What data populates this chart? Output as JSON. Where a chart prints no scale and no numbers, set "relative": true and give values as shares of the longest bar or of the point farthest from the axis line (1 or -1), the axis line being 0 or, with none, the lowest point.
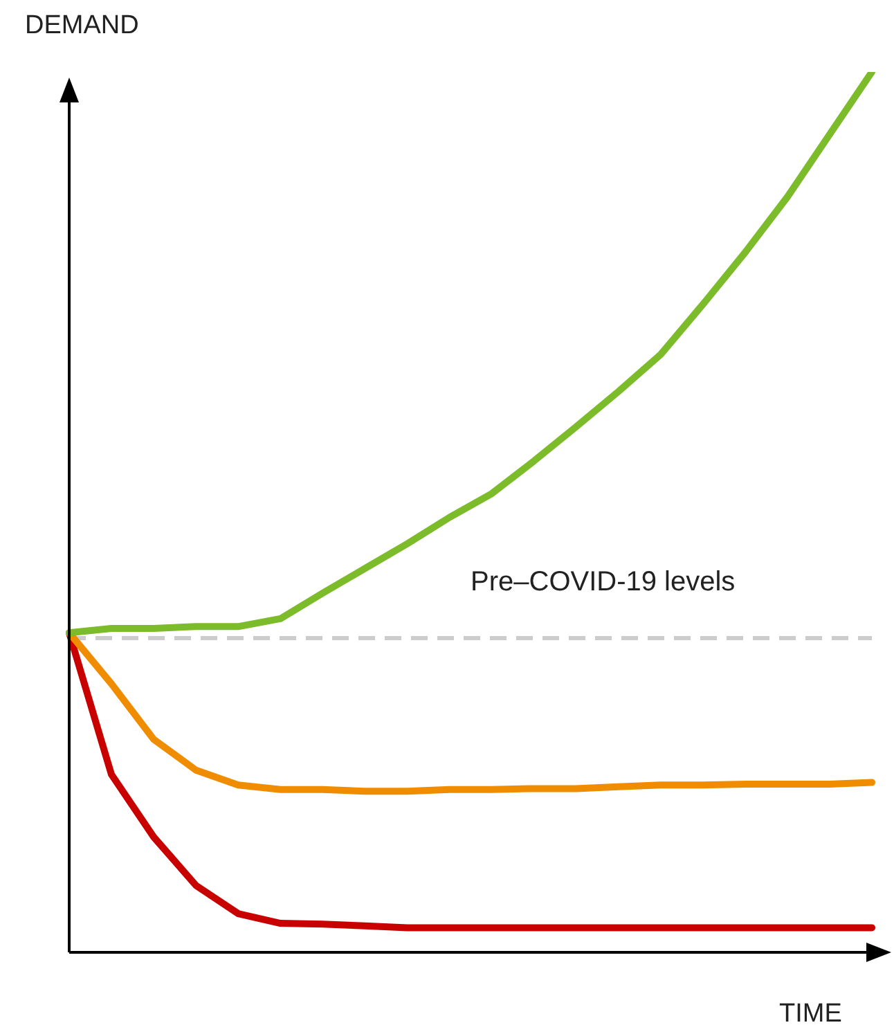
{
  "chart_data": {
    "type": "line",
    "relative": true,
    "xlabel": "TIME",
    "ylabel": "DEMAND",
    "categories": [
      null,
      null,
      null,
      null,
      null,
      null,
      null,
      null,
      null,
      null,
      null,
      null,
      null,
      null,
      null,
      null,
      null,
      null,
      null,
      null
    ],
    "series": [
      {
        "color": "#7cbb2a",
        "values": [
          0.363,
          0.368,
          0.368,
          0.37,
          0.37,
          0.379,
          0.408,
          0.436,
          0.464,
          0.494,
          0.521,
          0.558,
          0.597,
          0.637,
          0.679,
          0.736,
          0.795,
          0.858,
          0.929,
          1
        ]
      },
      {
        "color": "#f08c00",
        "values": [
          0.363,
          0.305,
          0.242,
          0.207,
          0.19,
          0.185,
          0.185,
          0.183,
          0.183,
          0.185,
          0.185,
          0.186,
          0.186,
          0.188,
          0.19,
          0.19,
          0.191,
          0.191,
          0.191,
          0.193
        ]
      },
      {
        "color": "#c80000",
        "values": [
          0.363,
          0.202,
          0.131,
          0.076,
          0.044,
          0.033,
          0.032,
          0.03,
          0.028,
          0.028,
          0.028,
          0.028,
          0.028,
          0.028,
          0.028,
          0.028,
          0.028,
          0.028,
          0.028,
          0.028
        ]
      }
    ],
    "ref_lines": [
      {
        "axis": "y",
        "value": 0.357,
        "label": "Pre–COVID-19 levels",
        "color": "#cccccc",
        "line_style": "dashed"
      }
    ],
    "grid": false,
    "legend": false,
    "marker": "none",
    "line_style": "solid"
  }
}
